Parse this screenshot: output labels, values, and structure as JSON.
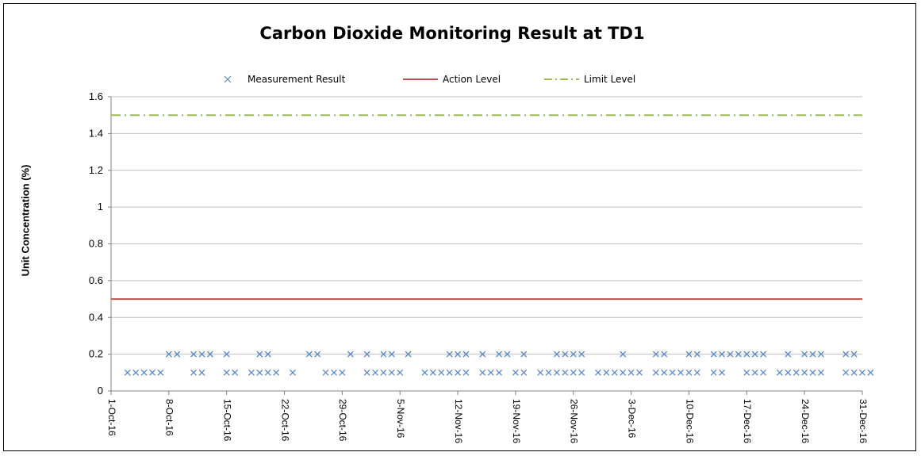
{
  "chart_data": {
    "type": "scatter",
    "title": "Carbon Dioxide Monitoring Result at TD1",
    "ylabel": "Unit Concentration (%)",
    "xlabel": "",
    "ylim": [
      0,
      1.6
    ],
    "yticks": [
      "0",
      "0.2",
      "0.4",
      "0.6",
      "0.8",
      "1",
      "1.2",
      "1.4",
      "1.6"
    ],
    "xrange": [
      "2016-10-01",
      "2016-12-31"
    ],
    "xtick_labels": [
      "1-Oct-16",
      "8-Oct-16",
      "15-Oct-16",
      "22-Oct-16",
      "29-Oct-16",
      "5-Nov-16",
      "12-Nov-16",
      "19-Nov-16",
      "26-Nov-16",
      "3-Dec-16",
      "10-Dec-16",
      "17-Dec-16",
      "24-Dec-16",
      "31-Dec-16"
    ],
    "grid": true,
    "legend_position": "top",
    "series": [
      {
        "name": "Measurement Result",
        "marker": "x",
        "color": "#5b87c7",
        "points": [
          [
            "2016-10-03",
            0.1
          ],
          [
            "2016-10-04",
            0.1
          ],
          [
            "2016-10-05",
            0.1
          ],
          [
            "2016-10-06",
            0.1
          ],
          [
            "2016-10-07",
            0.1
          ],
          [
            "2016-10-08",
            0.2
          ],
          [
            "2016-10-09",
            0.2
          ],
          [
            "2016-10-11",
            0.2
          ],
          [
            "2016-10-11",
            0.1
          ],
          [
            "2016-10-12",
            0.2
          ],
          [
            "2016-10-12",
            0.1
          ],
          [
            "2016-10-13",
            0.2
          ],
          [
            "2016-10-15",
            0.1
          ],
          [
            "2016-10-15",
            0.2
          ],
          [
            "2016-10-16",
            0.1
          ],
          [
            "2016-10-18",
            0.1
          ],
          [
            "2016-10-19",
            0.2
          ],
          [
            "2016-10-19",
            0.1
          ],
          [
            "2016-10-20",
            0.2
          ],
          [
            "2016-10-20",
            0.1
          ],
          [
            "2016-10-21",
            0.1
          ],
          [
            "2016-10-23",
            0.1
          ],
          [
            "2016-10-25",
            0.2
          ],
          [
            "2016-10-26",
            0.2
          ],
          [
            "2016-10-27",
            0.1
          ],
          [
            "2016-10-28",
            0.1
          ],
          [
            "2016-10-29",
            0.1
          ],
          [
            "2016-10-30",
            0.2
          ],
          [
            "2016-11-01",
            0.1
          ],
          [
            "2016-11-01",
            0.2
          ],
          [
            "2016-11-02",
            0.1
          ],
          [
            "2016-11-03",
            0.2
          ],
          [
            "2016-11-03",
            0.1
          ],
          [
            "2016-11-04",
            0.2
          ],
          [
            "2016-11-04",
            0.1
          ],
          [
            "2016-11-05",
            0.1
          ],
          [
            "2016-11-06",
            0.2
          ],
          [
            "2016-11-08",
            0.1
          ],
          [
            "2016-11-09",
            0.1
          ],
          [
            "2016-11-10",
            0.1
          ],
          [
            "2016-11-11",
            0.2
          ],
          [
            "2016-11-11",
            0.1
          ],
          [
            "2016-11-12",
            0.2
          ],
          [
            "2016-11-12",
            0.1
          ],
          [
            "2016-11-13",
            0.2
          ],
          [
            "2016-11-13",
            0.1
          ],
          [
            "2016-11-15",
            0.2
          ],
          [
            "2016-11-15",
            0.1
          ],
          [
            "2016-11-16",
            0.1
          ],
          [
            "2016-11-17",
            0.2
          ],
          [
            "2016-11-17",
            0.1
          ],
          [
            "2016-11-18",
            0.2
          ],
          [
            "2016-11-19",
            0.1
          ],
          [
            "2016-11-20",
            0.2
          ],
          [
            "2016-11-20",
            0.1
          ],
          [
            "2016-11-22",
            0.1
          ],
          [
            "2016-11-23",
            0.1
          ],
          [
            "2016-11-24",
            0.2
          ],
          [
            "2016-11-24",
            0.1
          ],
          [
            "2016-11-25",
            0.2
          ],
          [
            "2016-11-25",
            0.1
          ],
          [
            "2016-11-26",
            0.2
          ],
          [
            "2016-11-26",
            0.1
          ],
          [
            "2016-11-27",
            0.2
          ],
          [
            "2016-11-27",
            0.1
          ],
          [
            "2016-11-29",
            0.1
          ],
          [
            "2016-11-30",
            0.1
          ],
          [
            "2016-12-01",
            0.1
          ],
          [
            "2016-12-02",
            0.2
          ],
          [
            "2016-12-02",
            0.1
          ],
          [
            "2016-12-03",
            0.1
          ],
          [
            "2016-12-04",
            0.1
          ],
          [
            "2016-12-06",
            0.2
          ],
          [
            "2016-12-06",
            0.1
          ],
          [
            "2016-12-07",
            0.2
          ],
          [
            "2016-12-07",
            0.1
          ],
          [
            "2016-12-08",
            0.1
          ],
          [
            "2016-12-09",
            0.1
          ],
          [
            "2016-12-10",
            0.2
          ],
          [
            "2016-12-10",
            0.1
          ],
          [
            "2016-12-11",
            0.2
          ],
          [
            "2016-12-11",
            0.1
          ],
          [
            "2016-12-13",
            0.2
          ],
          [
            "2016-12-13",
            0.1
          ],
          [
            "2016-12-14",
            0.2
          ],
          [
            "2016-12-14",
            0.1
          ],
          [
            "2016-12-15",
            0.2
          ],
          [
            "2016-12-16",
            0.2
          ],
          [
            "2016-12-17",
            0.2
          ],
          [
            "2016-12-17",
            0.1
          ],
          [
            "2016-12-18",
            0.2
          ],
          [
            "2016-12-18",
            0.1
          ],
          [
            "2016-12-19",
            0.2
          ],
          [
            "2016-12-19",
            0.1
          ],
          [
            "2016-12-21",
            0.1
          ],
          [
            "2016-12-22",
            0.2
          ],
          [
            "2016-12-22",
            0.1
          ],
          [
            "2016-12-23",
            0.1
          ],
          [
            "2016-12-24",
            0.2
          ],
          [
            "2016-12-24",
            0.1
          ],
          [
            "2016-12-25",
            0.2
          ],
          [
            "2016-12-25",
            0.1
          ],
          [
            "2016-12-26",
            0.2
          ],
          [
            "2016-12-26",
            0.1
          ],
          [
            "2016-12-29",
            0.2
          ],
          [
            "2016-12-29",
            0.1
          ],
          [
            "2016-12-30",
            0.2
          ],
          [
            "2016-12-30",
            0.1
          ],
          [
            "2016-12-31",
            0.1
          ],
          [
            "2017-01-01",
            0.1
          ]
        ]
      },
      {
        "name": "Action Level",
        "type": "line",
        "color": "#c0504d",
        "y": 0.5
      },
      {
        "name": "Limit Level",
        "type": "line",
        "style": "dash-dot",
        "color": "#9bbb59",
        "y": 1.5
      }
    ]
  }
}
